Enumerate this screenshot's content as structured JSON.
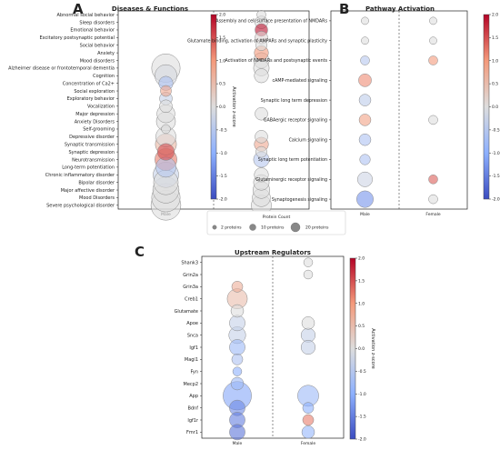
{
  "chart_data": [
    {
      "type": "scatter",
      "panel_letter": "A",
      "title": "Diseases & Functions",
      "x_categories": [
        "Male",
        "Female"
      ],
      "y_categories": [
        "Abnormal social behavior",
        "Sleep disorders",
        "Emotional behavior",
        "Excitatory postsynaptic potential",
        "Social behavior",
        "Anxiety",
        "Mood disorders",
        "Alzheimer disease or frontotemporal dementia",
        "Cognition",
        "Concentration of Ca2+",
        "Social exploration",
        "Exploratory behavior",
        "Vocalization",
        "Major depression",
        "Anxiety Disorders",
        "Self-grooming",
        "Depressive disorder",
        "Synaptic transmission",
        "Synaptic depression",
        "Neurotransmission",
        "Long-term potentiation",
        "Chronic inflammatory disorder",
        "Bipolar disorder",
        "Major affective disorder",
        "Mood Disorders",
        "Severe psychological disorder"
      ],
      "points": [
        {
          "y": "Abnormal social behavior",
          "x": "Female",
          "z": 0.0,
          "count": 2
        },
        {
          "y": "Sleep disorders",
          "x": "Female",
          "z": 0.0,
          "count": 4
        },
        {
          "y": "Emotional behavior",
          "x": "Female",
          "z": 1.9,
          "count": 4
        },
        {
          "y": "Excitatory postsynaptic potential",
          "x": "Female",
          "z": 0.1,
          "count": 4
        },
        {
          "y": "Social behavior",
          "x": "Female",
          "z": 0.0,
          "count": 3
        },
        {
          "y": "Anxiety",
          "x": "Female",
          "z": 1.0,
          "count": 5
        },
        {
          "y": "Mood disorders",
          "x": "Female",
          "z": 0.0,
          "count": 6
        },
        {
          "y": "Alzheimer disease or frontotemporal dementia",
          "x": "Male",
          "z": 0.0,
          "count": 20
        },
        {
          "y": "Alzheimer disease or frontotemporal dementia",
          "x": "Female",
          "z": 0.0,
          "count": 6
        },
        {
          "y": "Cognition",
          "x": "Male",
          "z": -0.1,
          "count": 12
        },
        {
          "y": "Cognition",
          "x": "Female",
          "z": 0.0,
          "count": 5
        },
        {
          "y": "Concentration of Ca2+",
          "x": "Male",
          "z": -0.6,
          "count": 5
        },
        {
          "y": "Social exploration",
          "x": "Male",
          "z": 0.8,
          "count": 3
        },
        {
          "y": "Exploratory behavior",
          "x": "Male",
          "z": -0.3,
          "count": 4
        },
        {
          "y": "Vocalization",
          "x": "Male",
          "z": 0.0,
          "count": 4
        },
        {
          "y": "Major depression",
          "x": "Male",
          "z": 0.0,
          "count": 8
        },
        {
          "y": "Major depression",
          "x": "Female",
          "z": 0.0,
          "count": 4
        },
        {
          "y": "Anxiety Disorders",
          "x": "Male",
          "z": 0.0,
          "count": 9
        },
        {
          "y": "Self-grooming",
          "x": "Male",
          "z": 0.0,
          "count": 2
        },
        {
          "y": "Depressive disorder",
          "x": "Male",
          "z": 0.0,
          "count": 10
        },
        {
          "y": "Depressive disorder",
          "x": "Female",
          "z": 0.0,
          "count": 4
        },
        {
          "y": "Synaptic transmission",
          "x": "Male",
          "z": 0.6,
          "count": 11
        },
        {
          "y": "Synaptic transmission",
          "x": "Female",
          "z": 0.8,
          "count": 5
        },
        {
          "y": "Synaptic depression",
          "x": "Male",
          "z": 1.5,
          "count": 7
        },
        {
          "y": "Synaptic depression",
          "x": "Female",
          "z": 0.0,
          "count": 3
        },
        {
          "y": "Neurotransmission",
          "x": "Male",
          "z": 1.2,
          "count": 12
        },
        {
          "y": "Neurotransmission",
          "x": "Female",
          "z": -0.5,
          "count": 6
        },
        {
          "y": "Long-term potentiation",
          "x": "Male",
          "z": -0.5,
          "count": 10
        },
        {
          "y": "Chronic inflammatory disorder",
          "x": "Male",
          "z": -0.3,
          "count": 16
        },
        {
          "y": "Chronic inflammatory disorder",
          "x": "Female",
          "z": 0.0,
          "count": 5
        },
        {
          "y": "Bipolar disorder",
          "x": "Male",
          "z": 0.0,
          "count": 15
        },
        {
          "y": "Bipolar disorder",
          "x": "Female",
          "z": 0.0,
          "count": 6
        },
        {
          "y": "Major affective disorder",
          "x": "Male",
          "z": 0.0,
          "count": 17
        },
        {
          "y": "Major affective disorder",
          "x": "Female",
          "z": 0.0,
          "count": 7
        },
        {
          "y": "Mood Disorders",
          "x": "Male",
          "z": 0.0,
          "count": 20
        },
        {
          "y": "Mood Disorders",
          "x": "Female",
          "z": 0.0,
          "count": 8
        },
        {
          "y": "Severe psychological disorder",
          "x": "Male",
          "z": 0.0,
          "count": 22
        },
        {
          "y": "Severe psychological disorder",
          "x": "Female",
          "z": 0.0,
          "count": 10
        }
      ],
      "colorbar_label": "Activation z-score",
      "colorbar_range": [
        -2.0,
        2.0
      ],
      "colorbar_ticks": [
        "2.0",
        "1.5",
        "1.0",
        "0.5",
        "0.0",
        "-0.5",
        "-1.0",
        "-1.5",
        "-2.0"
      ]
    },
    {
      "type": "scatter",
      "panel_letter": "B",
      "title": "Pathway Activation",
      "x_categories": [
        "Male",
        "Female"
      ],
      "y_categories": [
        "Assembly and cell surface presentation of NMDARs",
        "Glutamate binding, activation of AMPARs and synaptic plasticity",
        "Activation of NMDARs and postsynaptic events",
        "cAMP-mediated signaling",
        "Synaptic long term depression",
        "GABAergic receptor signaling",
        "Calcium signaling",
        "Synaptic long term potentiation",
        "Glutaminergic receptor signaling",
        "Synaptogenesis signaling"
      ],
      "points": [
        {
          "y": "Assembly and cell surface presentation of NMDARs",
          "x": "Male",
          "z": 0.0,
          "count": 2
        },
        {
          "y": "Assembly and cell surface presentation of NMDARs",
          "x": "Female",
          "z": 0.0,
          "count": 2
        },
        {
          "y": "Glutamate binding, activation of AMPARs and synaptic plasticity",
          "x": "Male",
          "z": 0.0,
          "count": 2
        },
        {
          "y": "Glutamate binding, activation of AMPARs and synaptic plasticity",
          "x": "Female",
          "z": 0.0,
          "count": 2
        },
        {
          "y": "Activation of NMDARs and postsynaptic events",
          "x": "Male",
          "z": -0.5,
          "count": 3
        },
        {
          "y": "Activation of NMDARs and postsynaptic events",
          "x": "Female",
          "z": 1.0,
          "count": 3
        },
        {
          "y": "cAMP-mediated signaling",
          "x": "Male",
          "z": 1.1,
          "count": 6
        },
        {
          "y": "Synaptic long term depression",
          "x": "Male",
          "z": -0.4,
          "count": 5
        },
        {
          "y": "GABAergic receptor signaling",
          "x": "Male",
          "z": 0.9,
          "count": 5
        },
        {
          "y": "GABAergic receptor signaling",
          "x": "Female",
          "z": 0.0,
          "count": 3
        },
        {
          "y": "Calcium signaling",
          "x": "Male",
          "z": -0.6,
          "count": 5
        },
        {
          "y": "Synaptic long term potentiation",
          "x": "Male",
          "z": -0.6,
          "count": 4
        },
        {
          "y": "Glutaminergic receptor signaling",
          "x": "Male",
          "z": -0.2,
          "count": 8
        },
        {
          "y": "Glutaminergic receptor signaling",
          "x": "Female",
          "z": 1.4,
          "count": 3
        },
        {
          "y": "Synaptogenesis signaling",
          "x": "Male",
          "z": -1.3,
          "count": 10
        },
        {
          "y": "Synaptogenesis signaling",
          "x": "Female",
          "z": 0.0,
          "count": 3
        }
      ],
      "colorbar_label": "Activation z-score",
      "colorbar_range": [
        -2.0,
        2.0
      ],
      "colorbar_ticks": [
        "2.0",
        "1.5",
        "1.0",
        "0.5",
        "0.0",
        "-0.5",
        "-1.0",
        "-1.5",
        "-2.0"
      ]
    },
    {
      "type": "scatter",
      "panel_letter": "C",
      "title": "Upstream Regulators",
      "x_categories": [
        "Male",
        "Female"
      ],
      "y_categories": [
        "Shank3",
        "Grin2a",
        "Grin3a",
        "Creb1",
        "Glutamate",
        "Apoe",
        "Snca",
        "Igf1",
        "Magi1",
        "Fyn",
        "Mecp2",
        "App",
        "Bdnf",
        "Igf1r",
        "Fmr1"
      ],
      "points": [
        {
          "y": "Shank3",
          "x": "Female",
          "z": 0.0,
          "count": 2
        },
        {
          "y": "Grin2a",
          "x": "Female",
          "z": 0.0,
          "count": 2
        },
        {
          "y": "Grin3a",
          "x": "Male",
          "z": 0.7,
          "count": 3
        },
        {
          "y": "Creb1",
          "x": "Male",
          "z": 0.5,
          "count": 10
        },
        {
          "y": "Glutamate",
          "x": "Male",
          "z": 0.0,
          "count": 4
        },
        {
          "y": "Apoe",
          "x": "Male",
          "z": -0.3,
          "count": 6
        },
        {
          "y": "Apoe",
          "x": "Female",
          "z": 0.0,
          "count": 4
        },
        {
          "y": "Snca",
          "x": "Male",
          "z": -0.3,
          "count": 7
        },
        {
          "y": "Snca",
          "x": "Female",
          "z": -0.3,
          "count": 5
        },
        {
          "y": "Igf1",
          "x": "Male",
          "z": -0.8,
          "count": 6
        },
        {
          "y": "Igf1",
          "x": "Female",
          "z": -0.3,
          "count": 5
        },
        {
          "y": "Magi1",
          "x": "Male",
          "z": -0.6,
          "count": 3
        },
        {
          "y": "Fyn",
          "x": "Male",
          "z": -1.0,
          "count": 2
        },
        {
          "y": "Mecp2",
          "x": "Male",
          "z": -0.8,
          "count": 4
        },
        {
          "y": "App",
          "x": "Male",
          "z": -1.1,
          "count": 20
        },
        {
          "y": "App",
          "x": "Female",
          "z": -0.8,
          "count": 11
        },
        {
          "y": "Bdnf",
          "x": "Male",
          "z": -1.4,
          "count": 6
        },
        {
          "y": "Bdnf",
          "x": "Female",
          "z": -1.0,
          "count": 3
        },
        {
          "y": "Igf1r",
          "x": "Male",
          "z": -1.5,
          "count": 6
        },
        {
          "y": "Igf1r",
          "x": "Female",
          "z": 1.2,
          "count": 3
        },
        {
          "y": "Fmr1",
          "x": "Male",
          "z": -1.6,
          "count": 6
        },
        {
          "y": "Fmr1",
          "x": "Female",
          "z": -0.9,
          "count": 4
        }
      ],
      "colorbar_label": "Activation z-score",
      "colorbar_range": [
        -2.0,
        2.0
      ],
      "colorbar_ticks": [
        "2.0",
        "1.5",
        "1.0",
        "0.5",
        "0.0",
        "-0.5",
        "-1.0",
        "-1.5",
        "-2.0"
      ]
    }
  ],
  "size_legend": {
    "title": "Protein Count",
    "items": [
      {
        "label": "2 proteins",
        "count": 2
      },
      {
        "label": "10 proteins",
        "count": 10
      },
      {
        "label": "20 proteins",
        "count": 20
      }
    ]
  }
}
